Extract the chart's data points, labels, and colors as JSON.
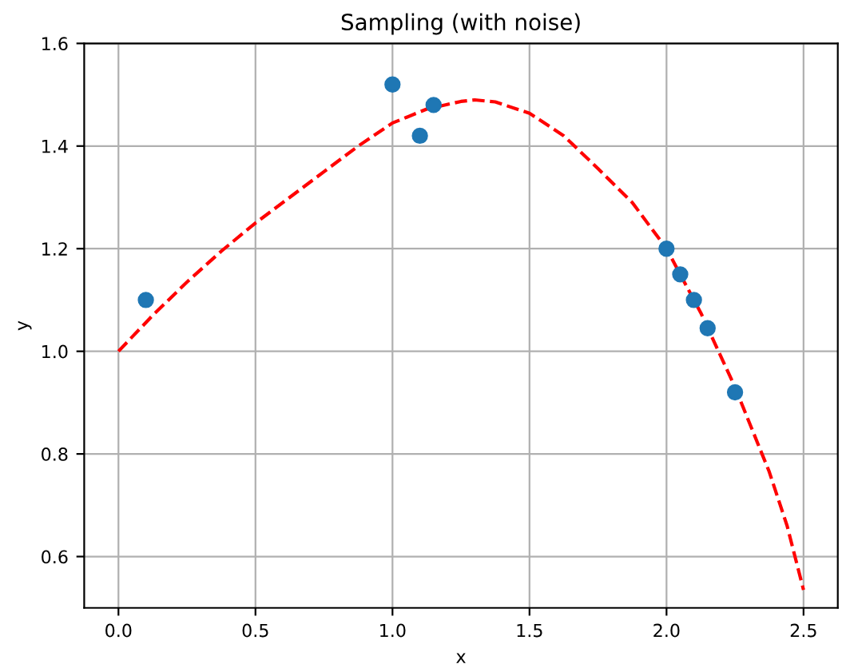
{
  "chart_data": {
    "type": "scatter",
    "title": "Sampling (with noise)",
    "xlabel": "x",
    "ylabel": "y",
    "series": [
      {
        "color": "#1f77b4",
        "marker": "circle",
        "x": [
          0.1,
          1.0,
          1.1,
          1.15,
          2.0,
          2.05,
          2.1,
          2.15,
          2.25
        ],
        "values": [
          1.1,
          1.52,
          1.42,
          1.48,
          1.2,
          1.15,
          1.1,
          1.045,
          0.92
        ]
      },
      {
        "type": "line",
        "color": "#ff0000",
        "line_style": "dashed",
        "x": [
          0,
          0.125,
          0.25,
          0.375,
          0.5,
          0.625,
          0.75,
          0.875,
          1.0,
          1.125,
          1.25,
          1.3,
          1.375,
          1.5,
          1.625,
          1.75,
          1.875,
          2.0,
          2.125,
          2.25,
          2.375,
          2.44,
          2.5
        ],
        "values": [
          1.0,
          1.07,
          1.135,
          1.195,
          1.25,
          1.3,
          1.35,
          1.4,
          1.445,
          1.472,
          1.487,
          1.49,
          1.486,
          1.464,
          1.42,
          1.356,
          1.29,
          1.2,
          1.075,
          0.93,
          0.765,
          0.66,
          0.535
        ]
      }
    ],
    "xlim": [
      -0.125,
      2.625
    ],
    "ylim": [
      0.5,
      1.6
    ],
    "xticks": [
      {
        "value": 0,
        "label": "0.0"
      },
      0.5,
      {
        "value": 1,
        "label": "1.0"
      },
      1.5,
      {
        "value": 2,
        "label": "2.0"
      },
      2.5
    ],
    "yticks": [
      0.6,
      0.8,
      {
        "value": 1,
        "label": "1.0"
      },
      1.2,
      1.4,
      1.6
    ],
    "grid": true
  }
}
